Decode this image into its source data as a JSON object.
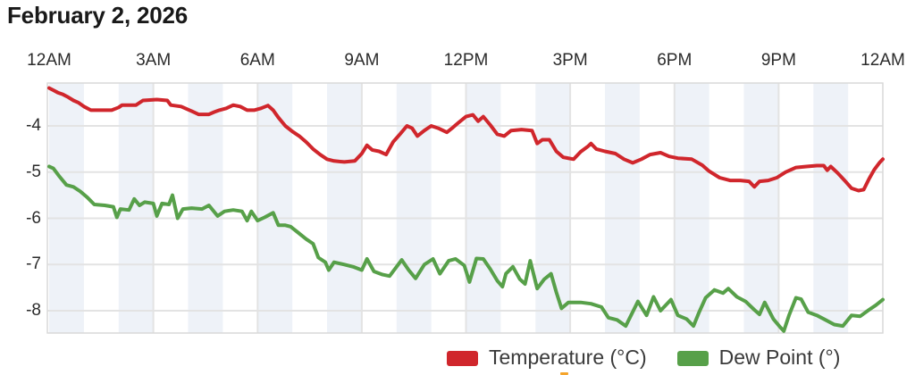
{
  "title": "February 2, 2026",
  "legend": {
    "items": [
      {
        "label": "Temperature (°C)",
        "color": "#d0262c"
      },
      {
        "label": "Dew Point (°)",
        "color": "#57a049"
      }
    ]
  },
  "colors": {
    "temperature_line": "#d0262c",
    "dew_point_line": "#57a049",
    "hour_band": "#eef2f8",
    "gridline": "#e3e3e3",
    "plot_border": "#d9d9d9",
    "axis_text": "#2b2b2b",
    "title_text": "#191919"
  },
  "chart_data": {
    "type": "line",
    "title": "February 2, 2026",
    "xlabel": "",
    "ylabel": "",
    "x_ticks": [
      "12AM",
      "3AM",
      "6AM",
      "9AM",
      "12PM",
      "3PM",
      "6PM",
      "9PM",
      "12AM"
    ],
    "x_tick_hours": [
      0,
      3,
      6,
      9,
      12,
      15,
      18,
      21,
      24
    ],
    "y_ticks": [
      -4,
      -5,
      -6,
      -7,
      -8
    ],
    "x_range_hours": [
      0,
      24
    ],
    "y_range": [
      -8.47,
      -3.07
    ],
    "grid": true,
    "alternating_hour_bands": true,
    "legend_position": "bottom-right",
    "series": [
      {
        "name": "Temperature (°C)",
        "color": "#d0262c",
        "unit": "°C",
        "points": [
          [
            0.0,
            -3.18
          ],
          [
            0.1,
            -3.22
          ],
          [
            0.25,
            -3.28
          ],
          [
            0.4,
            -3.32
          ],
          [
            0.55,
            -3.38
          ],
          [
            0.7,
            -3.45
          ],
          [
            0.85,
            -3.5
          ],
          [
            1.0,
            -3.58
          ],
          [
            1.2,
            -3.66
          ],
          [
            1.5,
            -3.66
          ],
          [
            1.8,
            -3.66
          ],
          [
            2.0,
            -3.6
          ],
          [
            2.1,
            -3.55
          ],
          [
            2.5,
            -3.55
          ],
          [
            2.7,
            -3.45
          ],
          [
            3.1,
            -3.43
          ],
          [
            3.4,
            -3.45
          ],
          [
            3.5,
            -3.55
          ],
          [
            3.8,
            -3.58
          ],
          [
            4.1,
            -3.68
          ],
          [
            4.3,
            -3.75
          ],
          [
            4.6,
            -3.75
          ],
          [
            4.75,
            -3.7
          ],
          [
            4.9,
            -3.66
          ],
          [
            5.1,
            -3.62
          ],
          [
            5.3,
            -3.55
          ],
          [
            5.5,
            -3.58
          ],
          [
            5.7,
            -3.66
          ],
          [
            5.9,
            -3.66
          ],
          [
            6.1,
            -3.62
          ],
          [
            6.3,
            -3.56
          ],
          [
            6.45,
            -3.66
          ],
          [
            6.6,
            -3.82
          ],
          [
            6.8,
            -4.0
          ],
          [
            7.0,
            -4.12
          ],
          [
            7.2,
            -4.22
          ],
          [
            7.4,
            -4.35
          ],
          [
            7.6,
            -4.5
          ],
          [
            7.8,
            -4.62
          ],
          [
            8.0,
            -4.72
          ],
          [
            8.2,
            -4.76
          ],
          [
            8.5,
            -4.78
          ],
          [
            8.8,
            -4.76
          ],
          [
            9.0,
            -4.6
          ],
          [
            9.15,
            -4.42
          ],
          [
            9.3,
            -4.52
          ],
          [
            9.5,
            -4.55
          ],
          [
            9.7,
            -4.62
          ],
          [
            9.9,
            -4.35
          ],
          [
            10.1,
            -4.18
          ],
          [
            10.3,
            -4.0
          ],
          [
            10.45,
            -4.05
          ],
          [
            10.6,
            -4.22
          ],
          [
            10.8,
            -4.1
          ],
          [
            11.0,
            -4.0
          ],
          [
            11.2,
            -4.05
          ],
          [
            11.45,
            -4.14
          ],
          [
            11.6,
            -4.05
          ],
          [
            11.8,
            -3.92
          ],
          [
            12.0,
            -3.8
          ],
          [
            12.2,
            -3.76
          ],
          [
            12.35,
            -3.9
          ],
          [
            12.5,
            -3.8
          ],
          [
            12.7,
            -3.98
          ],
          [
            12.9,
            -4.18
          ],
          [
            13.1,
            -4.22
          ],
          [
            13.3,
            -4.1
          ],
          [
            13.6,
            -4.08
          ],
          [
            13.9,
            -4.1
          ],
          [
            14.05,
            -4.38
          ],
          [
            14.2,
            -4.3
          ],
          [
            14.4,
            -4.3
          ],
          [
            14.6,
            -4.55
          ],
          [
            14.8,
            -4.68
          ],
          [
            15.1,
            -4.72
          ],
          [
            15.3,
            -4.56
          ],
          [
            15.5,
            -4.45
          ],
          [
            15.6,
            -4.38
          ],
          [
            15.75,
            -4.5
          ],
          [
            16.0,
            -4.55
          ],
          [
            16.3,
            -4.6
          ],
          [
            16.55,
            -4.72
          ],
          [
            16.8,
            -4.8
          ],
          [
            17.05,
            -4.72
          ],
          [
            17.3,
            -4.62
          ],
          [
            17.6,
            -4.58
          ],
          [
            17.85,
            -4.66
          ],
          [
            18.1,
            -4.7
          ],
          [
            18.5,
            -4.72
          ],
          [
            18.8,
            -4.85
          ],
          [
            19.0,
            -4.98
          ],
          [
            19.3,
            -5.12
          ],
          [
            19.6,
            -5.18
          ],
          [
            19.9,
            -5.18
          ],
          [
            20.15,
            -5.2
          ],
          [
            20.3,
            -5.32
          ],
          [
            20.45,
            -5.2
          ],
          [
            20.7,
            -5.18
          ],
          [
            20.95,
            -5.12
          ],
          [
            21.2,
            -5.0
          ],
          [
            21.5,
            -4.9
          ],
          [
            21.8,
            -4.88
          ],
          [
            22.1,
            -4.86
          ],
          [
            22.3,
            -4.86
          ],
          [
            22.4,
            -4.96
          ],
          [
            22.5,
            -4.88
          ],
          [
            22.7,
            -5.02
          ],
          [
            22.9,
            -5.18
          ],
          [
            23.1,
            -5.35
          ],
          [
            23.3,
            -5.4
          ],
          [
            23.45,
            -5.38
          ],
          [
            23.6,
            -5.15
          ],
          [
            23.75,
            -4.95
          ],
          [
            23.9,
            -4.8
          ],
          [
            24.0,
            -4.72
          ]
        ]
      },
      {
        "name": "Dew Point (°)",
        "color": "#57a049",
        "unit": "°",
        "points": [
          [
            0.0,
            -4.88
          ],
          [
            0.12,
            -4.92
          ],
          [
            0.3,
            -5.1
          ],
          [
            0.5,
            -5.28
          ],
          [
            0.7,
            -5.32
          ],
          [
            0.9,
            -5.42
          ],
          [
            1.1,
            -5.55
          ],
          [
            1.3,
            -5.7
          ],
          [
            1.6,
            -5.72
          ],
          [
            1.85,
            -5.75
          ],
          [
            1.95,
            -5.98
          ],
          [
            2.05,
            -5.8
          ],
          [
            2.3,
            -5.82
          ],
          [
            2.45,
            -5.58
          ],
          [
            2.6,
            -5.72
          ],
          [
            2.75,
            -5.65
          ],
          [
            3.0,
            -5.68
          ],
          [
            3.1,
            -5.95
          ],
          [
            3.25,
            -5.68
          ],
          [
            3.45,
            -5.7
          ],
          [
            3.55,
            -5.5
          ],
          [
            3.7,
            -6.0
          ],
          [
            3.85,
            -5.8
          ],
          [
            4.1,
            -5.78
          ],
          [
            4.4,
            -5.8
          ],
          [
            4.6,
            -5.72
          ],
          [
            4.85,
            -5.95
          ],
          [
            5.05,
            -5.85
          ],
          [
            5.3,
            -5.82
          ],
          [
            5.55,
            -5.85
          ],
          [
            5.7,
            -6.05
          ],
          [
            5.82,
            -5.85
          ],
          [
            6.0,
            -6.05
          ],
          [
            6.2,
            -5.98
          ],
          [
            6.45,
            -5.88
          ],
          [
            6.6,
            -6.15
          ],
          [
            6.8,
            -6.15
          ],
          [
            6.95,
            -6.18
          ],
          [
            7.15,
            -6.3
          ],
          [
            7.4,
            -6.45
          ],
          [
            7.6,
            -6.55
          ],
          [
            7.75,
            -6.85
          ],
          [
            7.95,
            -6.95
          ],
          [
            8.05,
            -7.12
          ],
          [
            8.2,
            -6.95
          ],
          [
            8.5,
            -7.0
          ],
          [
            8.75,
            -7.05
          ],
          [
            9.0,
            -7.12
          ],
          [
            9.15,
            -6.88
          ],
          [
            9.35,
            -7.15
          ],
          [
            9.6,
            -7.22
          ],
          [
            9.8,
            -7.25
          ],
          [
            10.0,
            -7.05
          ],
          [
            10.15,
            -6.9
          ],
          [
            10.35,
            -7.12
          ],
          [
            10.55,
            -7.3
          ],
          [
            10.8,
            -7.0
          ],
          [
            11.05,
            -6.88
          ],
          [
            11.25,
            -7.2
          ],
          [
            11.5,
            -6.92
          ],
          [
            11.7,
            -6.88
          ],
          [
            11.95,
            -7.02
          ],
          [
            12.1,
            -7.38
          ],
          [
            12.3,
            -6.87
          ],
          [
            12.5,
            -6.88
          ],
          [
            12.7,
            -7.1
          ],
          [
            12.9,
            -7.35
          ],
          [
            13.05,
            -7.48
          ],
          [
            13.15,
            -7.2
          ],
          [
            13.35,
            -7.05
          ],
          [
            13.55,
            -7.32
          ],
          [
            13.7,
            -7.42
          ],
          [
            13.85,
            -6.92
          ],
          [
            14.05,
            -7.52
          ],
          [
            14.25,
            -7.32
          ],
          [
            14.45,
            -7.2
          ],
          [
            14.6,
            -7.6
          ],
          [
            14.75,
            -7.95
          ],
          [
            14.95,
            -7.82
          ],
          [
            15.3,
            -7.82
          ],
          [
            15.6,
            -7.85
          ],
          [
            15.9,
            -7.92
          ],
          [
            16.1,
            -8.15
          ],
          [
            16.35,
            -8.2
          ],
          [
            16.6,
            -8.33
          ],
          [
            16.95,
            -7.8
          ],
          [
            17.2,
            -8.1
          ],
          [
            17.4,
            -7.7
          ],
          [
            17.6,
            -8.0
          ],
          [
            17.9,
            -7.76
          ],
          [
            18.1,
            -8.1
          ],
          [
            18.35,
            -8.18
          ],
          [
            18.55,
            -8.33
          ],
          [
            18.7,
            -8.05
          ],
          [
            18.9,
            -7.72
          ],
          [
            19.15,
            -7.55
          ],
          [
            19.4,
            -7.62
          ],
          [
            19.55,
            -7.52
          ],
          [
            19.8,
            -7.7
          ],
          [
            20.05,
            -7.8
          ],
          [
            20.3,
            -7.98
          ],
          [
            20.45,
            -8.08
          ],
          [
            20.6,
            -7.82
          ],
          [
            20.85,
            -8.18
          ],
          [
            21.05,
            -8.36
          ],
          [
            21.15,
            -8.44
          ],
          [
            21.3,
            -8.1
          ],
          [
            21.5,
            -7.72
          ],
          [
            21.65,
            -7.75
          ],
          [
            21.85,
            -8.03
          ],
          [
            22.1,
            -8.1
          ],
          [
            22.35,
            -8.2
          ],
          [
            22.6,
            -8.3
          ],
          [
            22.85,
            -8.33
          ],
          [
            23.1,
            -8.1
          ],
          [
            23.35,
            -8.12
          ],
          [
            23.6,
            -7.98
          ],
          [
            23.8,
            -7.88
          ],
          [
            24.0,
            -7.76
          ]
        ]
      }
    ]
  }
}
